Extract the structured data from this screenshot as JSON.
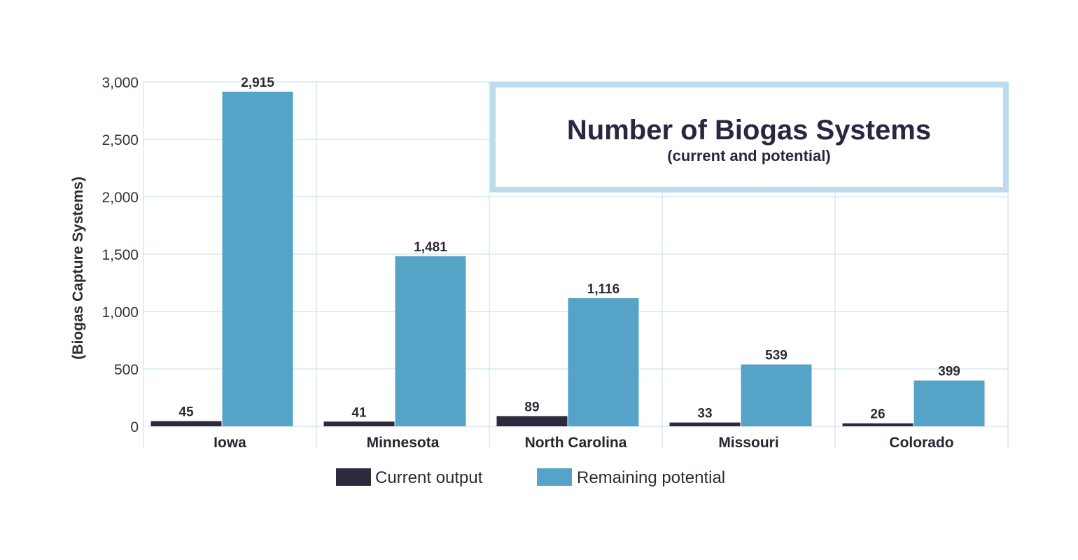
{
  "chart_data": {
    "type": "bar",
    "title": "Number of Biogas Systems",
    "subtitle": "(current and potential)",
    "xlabel": "",
    "ylabel": "(Biogas Capture Systems)",
    "ylim": [
      0,
      3000
    ],
    "yticks": [
      0,
      500,
      1000,
      1500,
      2000,
      2500,
      3000
    ],
    "ytick_labels": [
      "0",
      "500",
      "1,000",
      "1,500",
      "2,000",
      "2,500",
      "3,000"
    ],
    "categories": [
      "Iowa",
      "Minnesota",
      "North Carolina",
      "Missouri",
      "Colorado"
    ],
    "series": [
      {
        "name": "Current output",
        "color": "#2e2a3d",
        "values": [
          45,
          41,
          89,
          33,
          26
        ],
        "labels": [
          "45",
          "41",
          "89",
          "33",
          "26"
        ]
      },
      {
        "name": "Remaining potential",
        "color": "#55a3c6",
        "values": [
          2915,
          1481,
          1116,
          539,
          399
        ],
        "labels": [
          "2,915",
          "1,481",
          "1,116",
          "539",
          "399"
        ]
      }
    ],
    "grid": true,
    "legend": "bottom-center"
  },
  "colors": {
    "grid": "#cfe3f0",
    "title_box": "#bcdcee"
  }
}
